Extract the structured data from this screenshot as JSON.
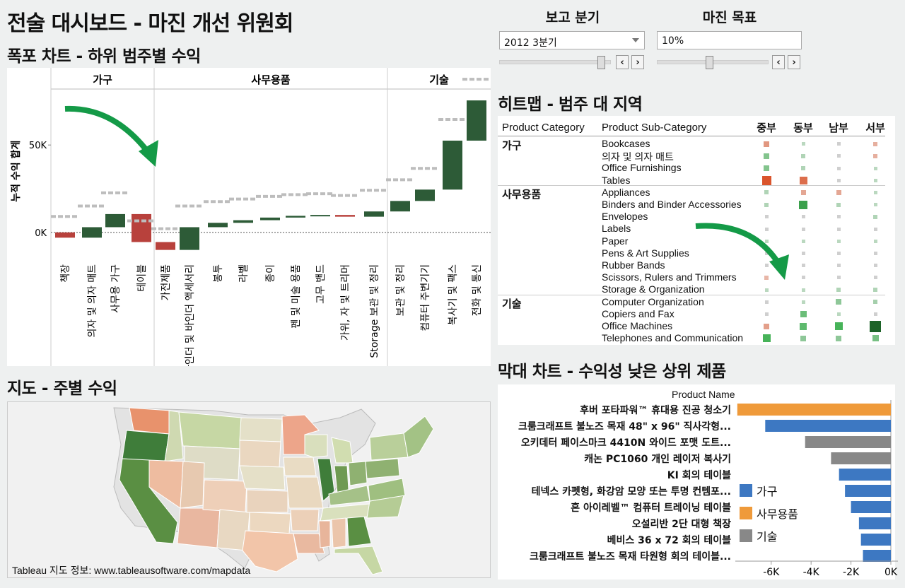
{
  "page": {
    "title": "전술 대시보드 - 마진 개선 위원회"
  },
  "controls": {
    "quarter": {
      "label": "보고 분기",
      "value": "2012 3분기"
    },
    "margin": {
      "label": "마진 목표",
      "value": "10%"
    }
  },
  "waterfall": {
    "title": "폭포 차트 - 하위 범주별 수익",
    "ylabel": "누적 수익 합계",
    "yticks": [
      "0K",
      "50K"
    ]
  },
  "map": {
    "title": "지도 - 주별 수익",
    "credit": "Tableau 지도 정보: www.tableausoftware.com/mapdata"
  },
  "heatmap": {
    "title": "히트맵 - 범주 대 지역",
    "col_category": "Product Category",
    "col_subcategory": "Product Sub-Category",
    "regions": [
      "중부",
      "동부",
      "남부",
      "서부"
    ],
    "groups": [
      {
        "name": "가구",
        "rows": [
          {
            "label": "Bookcases",
            "v": [
              -0.35,
              0.1,
              0.05,
              -0.2
            ]
          },
          {
            "label": "의자 및 의자 매트",
            "v": [
              0.35,
              0.15,
              0.05,
              -0.2
            ]
          },
          {
            "label": "Office Furnishings",
            "v": [
              0.35,
              0.15,
              0.05,
              0.1
            ]
          },
          {
            "label": "Tables",
            "v": [
              -0.75,
              -0.6,
              0.05,
              0.1
            ]
          }
        ]
      },
      {
        "name": "사무용품",
        "rows": [
          {
            "label": "Appliances",
            "v": [
              0.15,
              -0.25,
              -0.25,
              0.1
            ]
          },
          {
            "label": "Binders and Binder Accessories",
            "v": [
              0.15,
              0.7,
              0.15,
              0.1
            ]
          },
          {
            "label": "Envelopes",
            "v": [
              0.05,
              0.05,
              0.05,
              0.15
            ]
          },
          {
            "label": "Labels",
            "v": [
              0.05,
              0.05,
              0.05,
              0.05
            ]
          },
          {
            "label": "Paper",
            "v": [
              0.1,
              0.1,
              0.1,
              0.1
            ]
          },
          {
            "label": "Pens & Art Supplies",
            "v": [
              0.05,
              0.05,
              0.05,
              0.05
            ]
          },
          {
            "label": "Rubber Bands",
            "v": [
              0.05,
              0.05,
              0.05,
              0.05
            ]
          },
          {
            "label": "Scissors, Rulers and Trimmers",
            "v": [
              -0.15,
              0.05,
              0.05,
              0.05
            ]
          },
          {
            "label": "Storage & Organization",
            "v": [
              0.1,
              0.1,
              0.15,
              0.15
            ]
          }
        ]
      },
      {
        "name": "기술",
        "rows": [
          {
            "label": "Computer Organization",
            "v": [
              0.05,
              0.1,
              0.3,
              0.2
            ]
          },
          {
            "label": "Copiers and Fax",
            "v": [
              0.05,
              0.45,
              0.1,
              0.05
            ]
          },
          {
            "label": "Office Machines",
            "v": [
              -0.3,
              0.5,
              0.6,
              1.0
            ]
          },
          {
            "label": "Telephones and Communication",
            "v": [
              0.6,
              0.3,
              0.3,
              0.4
            ]
          }
        ]
      }
    ]
  },
  "barchart": {
    "title": "막대 차트 - 수익성 낮은 상위 제품",
    "col_header": "Product Name",
    "xticks": [
      "-6K",
      "-4K",
      "-2K",
      "0K"
    ],
    "legend": [
      {
        "name": "가구",
        "color": "#3d78c2"
      },
      {
        "name": "사무용품",
        "color": "#ef9a3a"
      },
      {
        "name": "기술",
        "color": "#888888"
      }
    ]
  },
  "chart_data": [
    {
      "type": "bar",
      "chart": "waterfall",
      "groups": [
        "가구",
        "사무용품",
        "기술"
      ],
      "categories": [
        {
          "label": "책장",
          "group": 0
        },
        {
          "label": "의자 및 의자 매트",
          "group": 0
        },
        {
          "label": "사무용 가구",
          "group": 0
        },
        {
          "label": "테이블",
          "group": 0
        },
        {
          "label": "가전제품",
          "group": 1
        },
        {
          "label": "바인더 및 바인더 액세서리",
          "group": 1
        },
        {
          "label": "봉투",
          "group": 1
        },
        {
          "label": "라벨",
          "group": 1
        },
        {
          "label": "종이",
          "group": 1
        },
        {
          "label": "펜 및 미술 용품",
          "group": 1
        },
        {
          "label": "고무 밴드",
          "group": 1
        },
        {
          "label": "가위, 자 및 트리머",
          "group": 1
        },
        {
          "label": "Storage 보관 및 정리",
          "group": 1
        },
        {
          "label": "보관 및 정리",
          "group": 2
        },
        {
          "label": "컴퓨터 주변기기",
          "group": 2
        },
        {
          "label": "복사기 및 팩스",
          "group": 2
        },
        {
          "label": "전화 및 통신",
          "group": 2
        }
      ],
      "values": [
        -3000,
        6000,
        7500,
        -16000,
        -4500,
        13000,
        2500,
        1500,
        1500,
        1000,
        500,
        -1000,
        3000,
        6000,
        6500,
        28000,
        23000
      ],
      "ylim": [
        -15000,
        82000
      ],
      "ylabel": "누적 수익 합계"
    },
    {
      "type": "bar",
      "chart": "low-profit-products",
      "categories": [
        "후버 포타파워™ 휴대용 진공 청소기",
        "크룸크래프트 불노즈 목재 48\" x 96\" 직사각형...",
        "오키데터 페이스마크 4410N 와이드 포맷 도트...",
        "캐논 PC1060 개인 레이저 복사기",
        "KI 회의 테이블",
        "테넥스 카펫형, 화강암 모양 또는 투명 컨템포...",
        "혼 아이레벨™ 컴퓨터 트레이닝 테이블",
        "오설리반 2단 대형 책장",
        "베비스 36 x 72 회의 테이블",
        "크룸크래프트 불노즈 목재 타원형 회의 테이블..."
      ],
      "values": [
        -7700,
        -6300,
        -4300,
        -3000,
        -2600,
        -2300,
        -2000,
        -1600,
        -1500,
        -1400
      ],
      "segments": [
        1,
        0,
        2,
        2,
        0,
        0,
        0,
        0,
        0,
        0
      ],
      "xlim": [
        -7800,
        0
      ]
    }
  ]
}
